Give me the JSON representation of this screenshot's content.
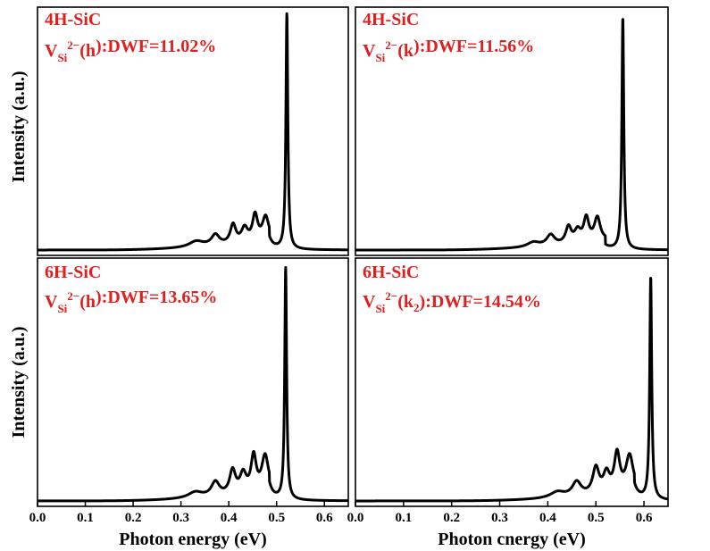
{
  "figure": {
    "ylabel": "Intensity (a.u.)",
    "xlabels": [
      "Photon energy (eV)",
      "Photon cnergy (eV)"
    ],
    "label_color": "#e02020",
    "line_color": "#000000"
  },
  "chart_data": [
    {
      "type": "line",
      "material": "4H-SiC",
      "defect": {
        "base": "V",
        "sub": "Si",
        "sup": "2−",
        "site": "h",
        "site_sub": ""
      },
      "dwf_text": ":DWF=11.02%",
      "xlim": [
        0,
        0.65
      ],
      "ylim": [
        0,
        1.02
      ],
      "xticks": [],
      "peaks": [
        {
          "e": 0.5215,
          "h": 1.0,
          "w": 0.0024
        },
        {
          "e": 0.477,
          "h": 0.1,
          "w": 0.008
        },
        {
          "e": 0.455,
          "h": 0.11,
          "w": 0.0065
        },
        {
          "e": 0.433,
          "h": 0.06,
          "w": 0.008
        },
        {
          "e": 0.409,
          "h": 0.08,
          "w": 0.007
        },
        {
          "e": 0.372,
          "h": 0.045,
          "w": 0.01
        },
        {
          "e": 0.332,
          "h": 0.025,
          "w": 0.018
        }
      ],
      "background": {
        "start": 0.12,
        "end": 0.485,
        "h": 0.035
      }
    },
    {
      "type": "line",
      "material": "4H-SiC",
      "defect": {
        "base": "V",
        "sub": "Si",
        "sup": "2−",
        "site": "k",
        "site_sub": ""
      },
      "dwf_text": ":DWF=11.56%",
      "xlim": [
        0,
        0.65
      ],
      "ylim": [
        0,
        1.02
      ],
      "xticks": [],
      "peaks": [
        {
          "e": 0.556,
          "h": 0.98,
          "w": 0.0024
        },
        {
          "e": 0.503,
          "h": 0.1,
          "w": 0.0075
        },
        {
          "e": 0.48,
          "h": 0.1,
          "w": 0.0065
        },
        {
          "e": 0.462,
          "h": 0.05,
          "w": 0.008
        },
        {
          "e": 0.443,
          "h": 0.07,
          "w": 0.007
        },
        {
          "e": 0.406,
          "h": 0.045,
          "w": 0.01
        },
        {
          "e": 0.37,
          "h": 0.02,
          "w": 0.015
        }
      ],
      "background": {
        "start": 0.15,
        "end": 0.52,
        "h": 0.035
      }
    },
    {
      "type": "line",
      "material": "6H-SiC",
      "defect": {
        "base": "V",
        "sub": "Si",
        "sup": "2−",
        "site": "h",
        "site_sub": ""
      },
      "dwf_text": ":DWF=13.65%",
      "xlim": [
        0,
        0.65
      ],
      "ylim": [
        0,
        1.02
      ],
      "xticks": [
        0.0,
        0.1,
        0.2,
        0.3,
        0.4,
        0.5,
        0.6
      ],
      "xlabel_index": 0,
      "peaks": [
        {
          "e": 0.519,
          "h": 0.98,
          "w": 0.0024
        },
        {
          "e": 0.476,
          "h": 0.15,
          "w": 0.0085
        },
        {
          "e": 0.452,
          "h": 0.15,
          "w": 0.0065
        },
        {
          "e": 0.43,
          "h": 0.08,
          "w": 0.008
        },
        {
          "e": 0.408,
          "h": 0.1,
          "w": 0.0075
        },
        {
          "e": 0.372,
          "h": 0.06,
          "w": 0.01
        },
        {
          "e": 0.33,
          "h": 0.025,
          "w": 0.018
        }
      ],
      "background": {
        "start": 0.12,
        "end": 0.485,
        "h": 0.035
      }
    },
    {
      "type": "line",
      "material": "6H-SiC",
      "defect": {
        "base": "V",
        "sub": "Si",
        "sup": "2−",
        "site": "k",
        "site_sub": "2"
      },
      "dwf_text": ":DWF=14.54%",
      "xlim": [
        0,
        0.65
      ],
      "ylim": [
        0,
        1.02
      ],
      "xticks": [
        0.0,
        0.1,
        0.2,
        0.3,
        0.4,
        0.5,
        0.6
      ],
      "xlabel_index": 1,
      "peaks": [
        {
          "e": 0.614,
          "h": 0.94,
          "w": 0.0025
        },
        {
          "e": 0.57,
          "h": 0.15,
          "w": 0.009
        },
        {
          "e": 0.544,
          "h": 0.16,
          "w": 0.007
        },
        {
          "e": 0.522,
          "h": 0.08,
          "w": 0.008
        },
        {
          "e": 0.5,
          "h": 0.11,
          "w": 0.008
        },
        {
          "e": 0.46,
          "h": 0.06,
          "w": 0.011
        },
        {
          "e": 0.42,
          "h": 0.025,
          "w": 0.018
        }
      ],
      "background": {
        "start": 0.2,
        "end": 0.58,
        "h": 0.035
      }
    }
  ]
}
